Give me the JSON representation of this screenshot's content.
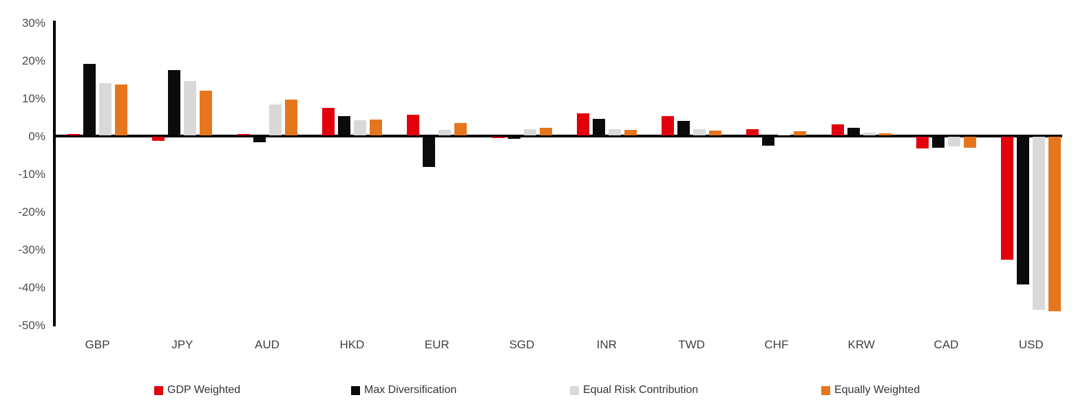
{
  "chart_data": {
    "type": "bar",
    "title": "",
    "categories": [
      "GBP",
      "JPY",
      "AUD",
      "HKD",
      "EUR",
      "SGD",
      "INR",
      "TWD",
      "CHF",
      "KRW",
      "CAD",
      "USD"
    ],
    "series": [
      {
        "name": "GDP Weighted",
        "color": "#e2000d",
        "values": [
          0.4,
          -1.0,
          0.4,
          7.2,
          5.5,
          -0.3,
          5.8,
          5.1,
          1.6,
          2.9,
          -3.0,
          -32.5
        ]
      },
      {
        "name": "Max Diversification",
        "color": "#0b0b0b",
        "values": [
          18.9,
          17.2,
          -1.4,
          5.1,
          -8.0,
          -0.6,
          4.4,
          3.9,
          -2.3,
          2.0,
          -2.9,
          -39.0
        ]
      },
      {
        "name": "Equal Risk Contribution",
        "color": "#d9d9d9",
        "values": [
          13.9,
          14.3,
          8.1,
          4.0,
          1.5,
          1.7,
          1.7,
          1.6,
          0.2,
          0.8,
          -2.6,
          -45.8
        ]
      },
      {
        "name": "Equally Weighted",
        "color": "#e6761d",
        "values": [
          13.5,
          11.9,
          9.4,
          4.1,
          3.3,
          2.0,
          1.4,
          1.3,
          1.1,
          0.6,
          -2.9,
          -46.2
        ]
      }
    ],
    "ylim": [
      -50,
      30
    ],
    "yticks": [
      {
        "label": "30%",
        "value": 30
      },
      {
        "label": "20%",
        "value": 20
      },
      {
        "label": "10%",
        "value": 10
      },
      {
        "label": "0%",
        "value": 0
      },
      {
        "label": "-10%",
        "value": -10
      },
      {
        "label": "-20%",
        "value": -20
      },
      {
        "label": "-30%",
        "value": -30
      },
      {
        "label": "-40%",
        "value": -40
      },
      {
        "label": "-50%",
        "value": -50
      }
    ],
    "grid": false,
    "legend_position": "bottom",
    "axis_color": "#000000"
  }
}
